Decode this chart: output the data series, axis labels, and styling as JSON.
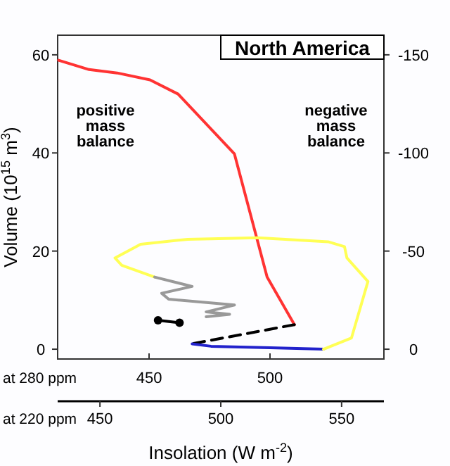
{
  "chart_data": {
    "type": "line",
    "title": "North America",
    "xlabel": "Insolation (W m$^{-2}$)",
    "ylabel": "Volume (10$^{15}$ m$^{3}$)",
    "annotations": [
      "positive mass balance",
      "negative mass balance",
      "at 280 ppm",
      "at 220 ppm"
    ],
    "xlim": [
      412.2,
      547.1
    ],
    "xticks": [
      450,
      500
    ],
    "x2lim": [
      432.5,
      567.5
    ],
    "x2ticks": [
      450,
      500,
      550
    ],
    "ylim": [
      -2,
      64
    ],
    "yticks": [
      0,
      20,
      40,
      60
    ],
    "y2lim": [
      5,
      -160
    ],
    "y2ticks": [
      -150,
      -100,
      -50,
      0
    ],
    "grid": false,
    "series": [
      {
        "color": "#ff3333",
        "x": [
          412.6,
          425.2,
          436.8,
          450.4,
          462.0,
          485.3,
          498.8,
          510.1
        ],
        "values": [
          58.9,
          57.0,
          56.3,
          54.9,
          52.0,
          39.8,
          14.7,
          5.0
        ]
      },
      {
        "color": "#000000",
        "line_style": "dashed",
        "x": [
          510.1,
          467.8
        ],
        "values": [
          5.0,
          1.1
        ]
      },
      {
        "color": "#2222cc",
        "x": [
          467.8,
          475.6,
          500,
          522.1
        ],
        "values": [
          1.1,
          0.6,
          0.3,
          0
        ]
      },
      {
        "color": "#ffff55",
        "x": [
          522.1,
          533.7,
          540.5,
          531.8,
          530.8,
          524.0,
          494.9,
          465.9,
          446.5,
          435.9,
          438.7,
          452.3
        ],
        "values": [
          0,
          2.3,
          13.8,
          18.6,
          20.9,
          21.9,
          22.7,
          22.4,
          21.4,
          18.6,
          17.1,
          14.7
        ]
      },
      {
        "color": "#999999",
        "x": [
          452.3,
          467.8,
          455.2,
          458.1,
          485.3,
          473.6,
          483.3,
          473.6
        ],
        "values": [
          14.7,
          12.8,
          11.4,
          10.2,
          9.0,
          7.6,
          7.1,
          6.6
        ]
      },
      {
        "color": "#000000",
        "marker": "circle",
        "x": [
          453.7,
          462.6
        ],
        "values": [
          5.9,
          5.4
        ]
      }
    ]
  }
}
